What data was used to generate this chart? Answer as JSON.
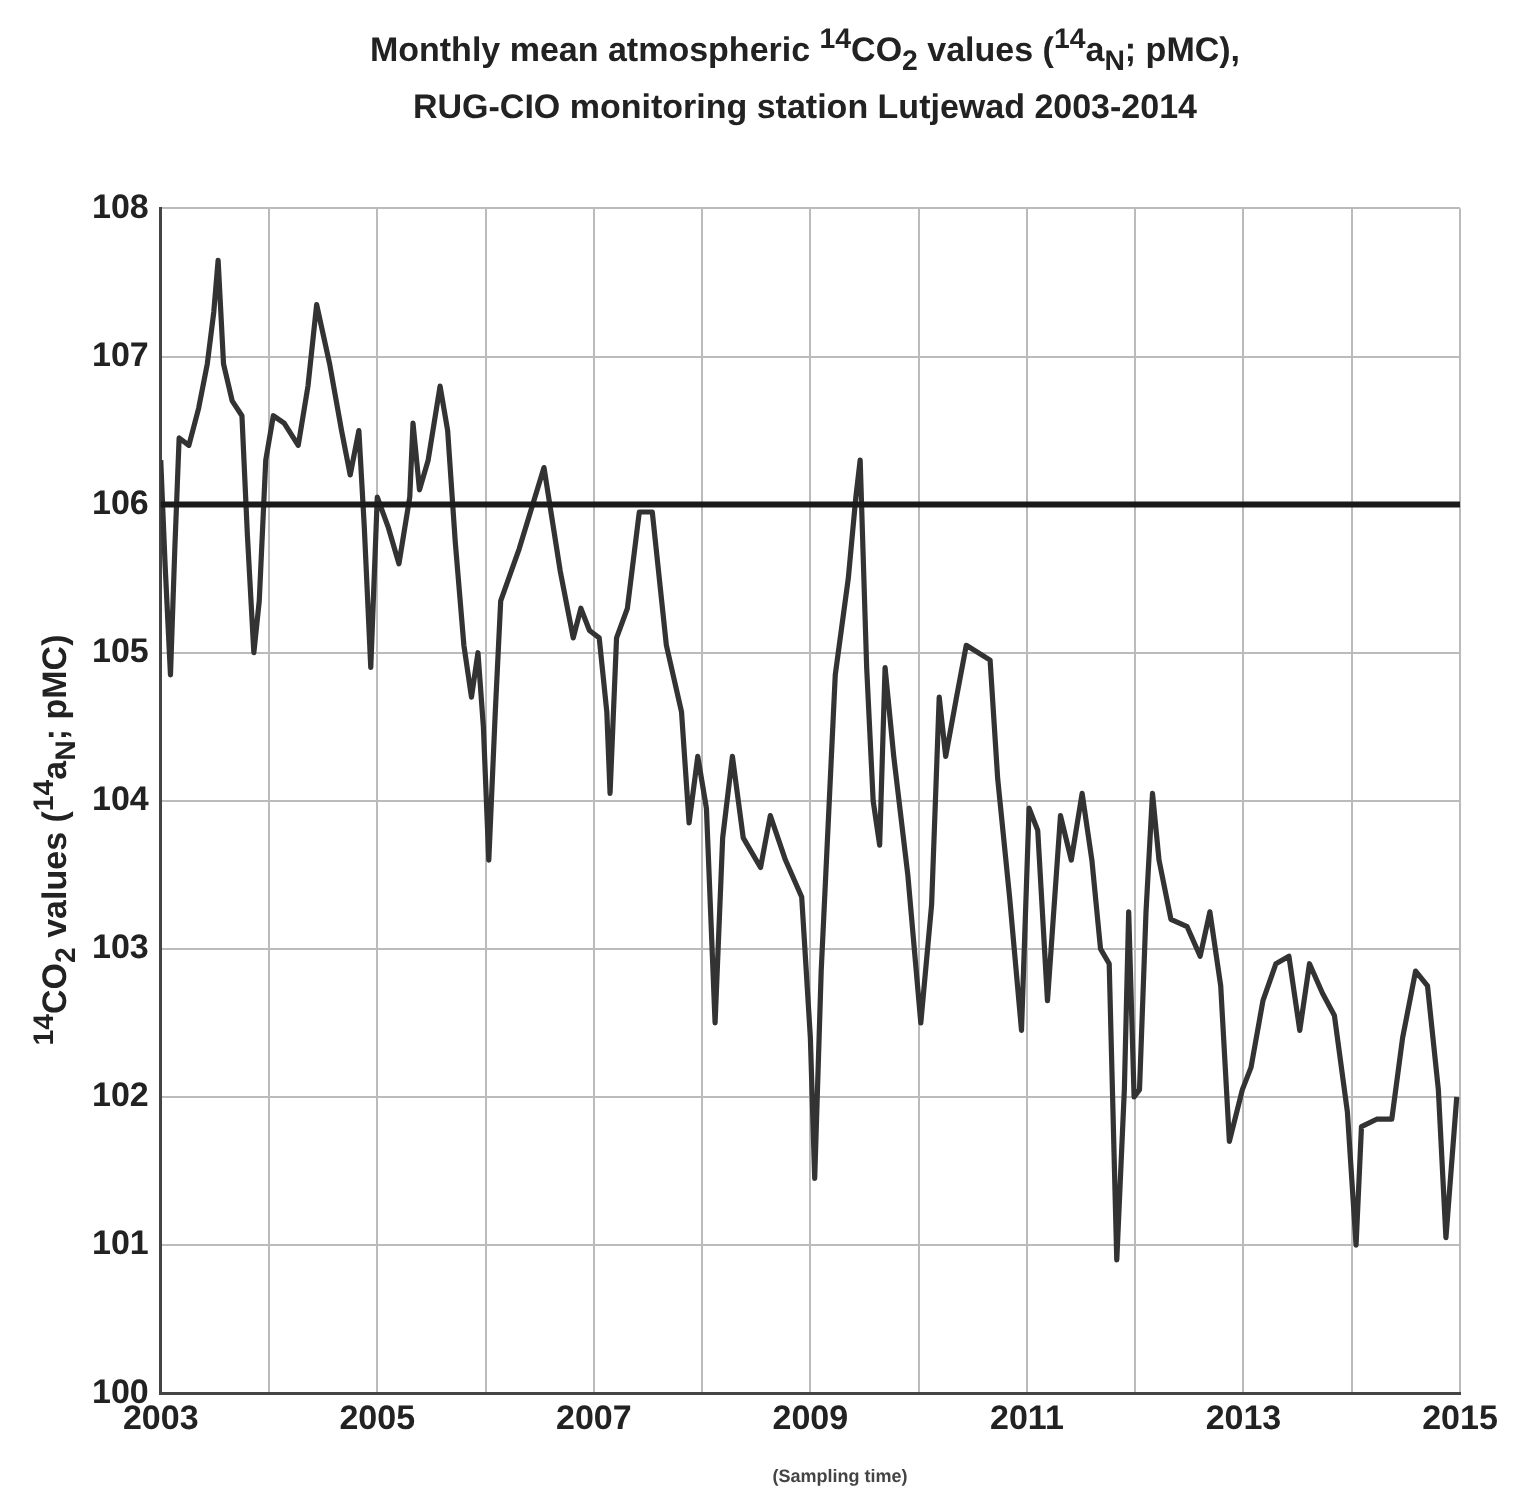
{
  "chart_data": {
    "type": "line",
    "title": "Monthly mean atmospheric $^{14}$CO$_{2}$ values ($^{14}$a$_{N}$; pMC),",
    "subtitle": "RUG-CIO monitoring station Lutjewad 2003-2014",
    "xlabel": "(Sampling time)",
    "ylabel": "$^{14}$CO$_{2}$ values ($^{14}$a$_{N}$; pMC)",
    "xlim": [
      2003,
      2015
    ],
    "xticks": [
      2003,
      {
        "value": 2004,
        "label": null
      },
      2005,
      {
        "value": 2006,
        "label": null
      },
      2007,
      {
        "value": 2008,
        "label": null
      },
      2009,
      {
        "value": 2010,
        "label": null
      },
      2011,
      {
        "value": 2012,
        "label": null
      },
      2013,
      {
        "value": 2014,
        "label": null
      },
      2015
    ],
    "ylim": [
      100,
      108
    ],
    "yticks": [
      100,
      101,
      102,
      103,
      104,
      105,
      106,
      107,
      108
    ],
    "grid": true,
    "legend": false,
    "marker": "none",
    "line_style": "solid",
    "ref_lines": [
      {
        "axis": "y",
        "value": 106,
        "color": "#1a1a1a"
      }
    ],
    "series": [
      {
        "color": "#333333",
        "x": [
          2003.0,
          2003.04,
          2003.09,
          2003.13,
          2003.17,
          2003.26,
          2003.35,
          2003.43,
          2003.49,
          2003.53,
          2003.58,
          2003.66,
          2003.75,
          2003.8,
          2003.86,
          2003.91,
          2003.97,
          2004.04,
          2004.14,
          2004.27,
          2004.36,
          2004.44,
          2004.56,
          2004.67,
          2004.75,
          2004.83,
          2004.88,
          2004.94,
          2005.0,
          2005.1,
          2005.2,
          2005.3,
          2005.33,
          2005.39,
          2005.47,
          2005.58,
          2005.65,
          2005.72,
          2005.8,
          2005.87,
          2005.93,
          2005.98,
          2006.03,
          2006.09,
          2006.14,
          2006.31,
          2006.54,
          2006.69,
          2006.81,
          2006.88,
          2006.96,
          2007.05,
          2007.12,
          2007.15,
          2007.21,
          2007.31,
          2007.42,
          2007.54,
          2007.67,
          2007.81,
          2007.88,
          2007.96,
          2008.04,
          2008.12,
          2008.19,
          2008.28,
          2008.38,
          2008.54,
          2008.63,
          2008.77,
          2008.92,
          2009.0,
          2009.04,
          2009.1,
          2009.23,
          2009.35,
          2009.42,
          2009.46,
          2009.52,
          2009.58,
          2009.64,
          2009.69,
          2009.77,
          2009.9,
          2010.02,
          2010.12,
          2010.19,
          2010.25,
          2010.35,
          2010.44,
          2010.66,
          2010.73,
          2010.84,
          2010.95,
          2011.02,
          2011.1,
          2011.19,
          2011.31,
          2011.41,
          2011.51,
          2011.6,
          2011.68,
          2011.76,
          2011.83,
          2011.9,
          2011.94,
          2011.99,
          2012.04,
          2012.1,
          2012.16,
          2012.22,
          2012.33,
          2012.48,
          2012.6,
          2012.69,
          2012.79,
          2012.87,
          2012.99,
          2013.07,
          2013.18,
          2013.3,
          2013.42,
          2013.52,
          2013.61,
          2013.73,
          2013.84,
          2013.96,
          2014.04,
          2014.09,
          2014.23,
          2014.37,
          2014.47,
          2014.59,
          2014.7,
          2014.8,
          2014.87,
          2014.97
        ],
        "values": [
          106.3,
          105.6,
          104.85,
          105.7,
          106.45,
          106.4,
          106.65,
          106.95,
          107.3,
          107.65,
          106.95,
          106.7,
          106.6,
          105.8,
          105.0,
          105.35,
          106.3,
          106.6,
          106.55,
          106.4,
          106.8,
          107.35,
          106.95,
          106.5,
          106.2,
          106.5,
          105.85,
          104.9,
          106.05,
          105.85,
          105.6,
          106.05,
          106.55,
          106.1,
          106.3,
          106.8,
          106.5,
          105.75,
          105.05,
          104.7,
          105.0,
          104.5,
          103.6,
          104.6,
          105.35,
          105.7,
          106.25,
          105.55,
          105.1,
          105.3,
          105.15,
          105.1,
          104.6,
          104.05,
          105.1,
          105.3,
          105.95,
          105.95,
          105.05,
          104.6,
          103.85,
          104.3,
          103.95,
          102.5,
          103.75,
          104.3,
          103.75,
          103.55,
          103.9,
          103.6,
          103.35,
          102.4,
          101.45,
          102.85,
          104.85,
          105.5,
          106.05,
          106.3,
          104.9,
          104.0,
          103.7,
          104.9,
          104.3,
          103.5,
          102.5,
          103.3,
          104.7,
          104.3,
          104.7,
          105.05,
          104.95,
          104.15,
          103.35,
          102.45,
          103.95,
          103.8,
          102.65,
          103.9,
          103.6,
          104.05,
          103.6,
          103.0,
          102.9,
          100.9,
          102.05,
          103.25,
          102.0,
          102.05,
          103.25,
          104.05,
          103.6,
          103.2,
          103.15,
          102.95,
          103.25,
          102.75,
          101.7,
          102.05,
          102.2,
          102.65,
          102.9,
          102.95,
          102.45,
          102.9,
          102.7,
          102.55,
          101.9,
          101.0,
          101.8,
          101.85,
          101.85,
          102.4,
          102.85,
          102.75,
          102.05,
          101.05,
          102.0
        ]
      }
    ]
  }
}
